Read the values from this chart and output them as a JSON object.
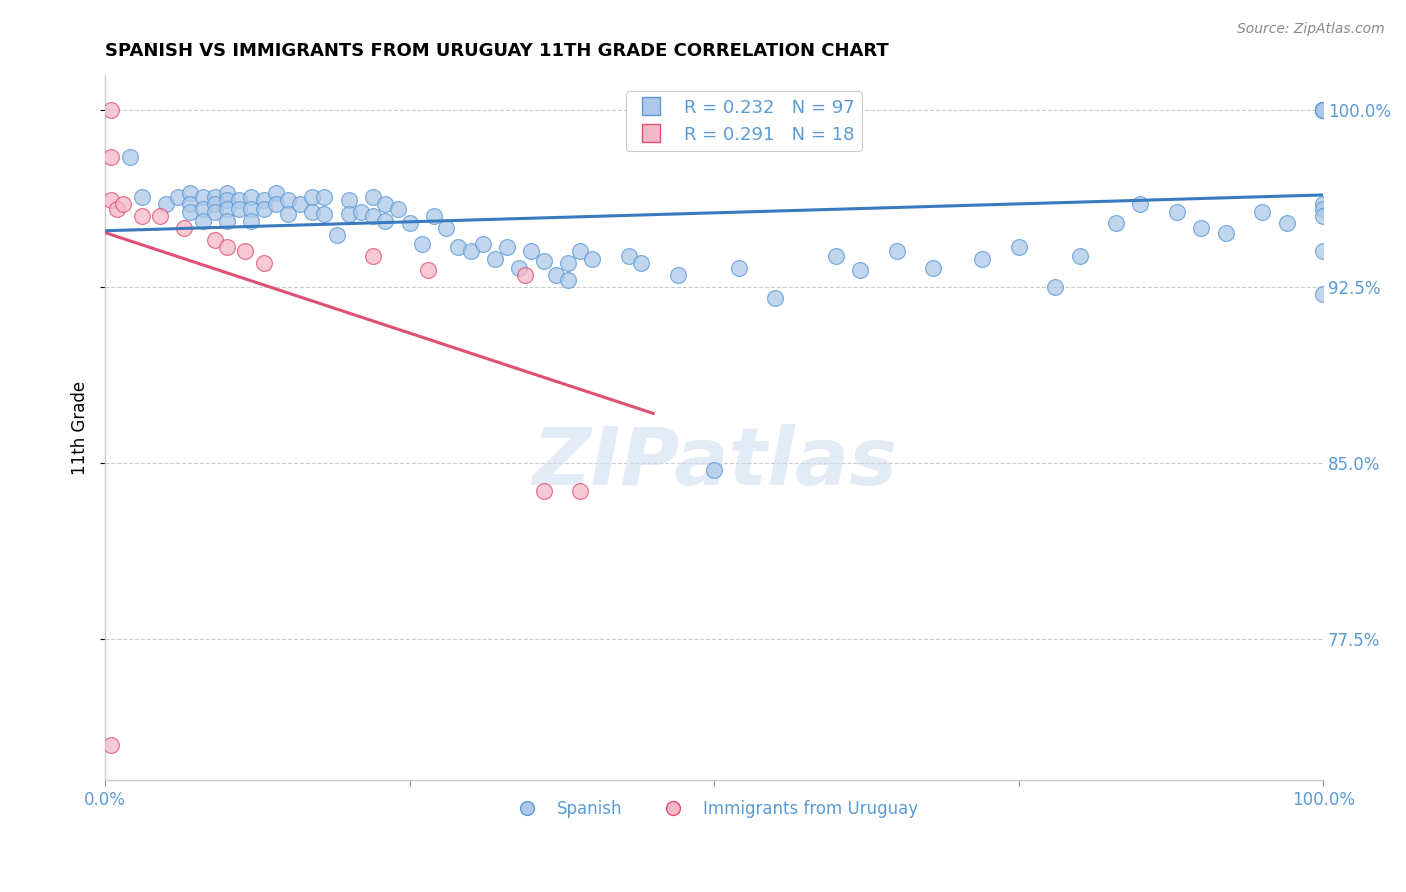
{
  "title": "SPANISH VS IMMIGRANTS FROM URUGUAY 11TH GRADE CORRELATION CHART",
  "source": "Source: ZipAtlas.com",
  "ylabel": "11th Grade",
  "legend_spanish": "Spanish",
  "legend_immigrants": "Immigrants from Uruguay",
  "R_spanish": 0.232,
  "N_spanish": 97,
  "R_immigrants": 0.291,
  "N_immigrants": 18,
  "xlim": [
    0.0,
    1.0
  ],
  "ylim": [
    0.715,
    1.015
  ],
  "yticks": [
    0.775,
    0.85,
    0.925,
    1.0
  ],
  "ytick_labels": [
    "77.5%",
    "85.0%",
    "92.5%",
    "100.0%"
  ],
  "xticks": [
    0.0,
    0.25,
    0.5,
    0.75,
    1.0
  ],
  "xtick_labels": [
    "0.0%",
    "",
    "",
    "",
    "100.0%"
  ],
  "color_spanish_fill": "#adc8e8",
  "color_spanish_edge": "#5b9bd5",
  "color_immigrants_fill": "#f4b8c8",
  "color_immigrants_edge": "#e05070",
  "color_trend_spanish": "#3a7bbf",
  "color_trend_immigrants": "#e05070",
  "color_axis_labels": "#5b9bd5",
  "watermark_text": "ZIPatlas",
  "spanish_x": [
    0.02,
    0.03,
    0.05,
    0.06,
    0.07,
    0.07,
    0.07,
    0.08,
    0.08,
    0.08,
    0.09,
    0.09,
    0.09,
    0.1,
    0.1,
    0.1,
    0.1,
    0.11,
    0.11,
    0.12,
    0.12,
    0.12,
    0.13,
    0.13,
    0.14,
    0.14,
    0.15,
    0.15,
    0.16,
    0.17,
    0.17,
    0.18,
    0.18,
    0.19,
    0.2,
    0.2,
    0.21,
    0.22,
    0.22,
    0.23,
    0.23,
    0.24,
    0.25,
    0.26,
    0.27,
    0.28,
    0.29,
    0.3,
    0.31,
    0.32,
    0.33,
    0.34,
    0.35,
    0.36,
    0.37,
    0.38,
    0.38,
    0.39,
    0.4,
    0.43,
    0.44,
    0.47,
    0.5,
    0.52,
    0.55,
    0.6,
    0.62,
    0.65,
    0.68,
    0.72,
    0.75,
    0.78,
    0.8,
    0.83,
    0.85,
    0.88,
    0.9,
    0.92,
    0.95,
    0.97,
    1.0,
    1.0,
    1.0,
    1.0,
    1.0,
    1.0,
    1.0,
    1.0,
    1.0,
    1.0,
    1.0,
    1.0,
    1.0,
    1.0,
    1.0,
    1.0,
    1.0
  ],
  "spanish_y": [
    0.98,
    0.963,
    0.96,
    0.963,
    0.965,
    0.96,
    0.957,
    0.963,
    0.958,
    0.953,
    0.963,
    0.96,
    0.957,
    0.965,
    0.962,
    0.958,
    0.953,
    0.962,
    0.958,
    0.963,
    0.958,
    0.953,
    0.962,
    0.958,
    0.965,
    0.96,
    0.962,
    0.956,
    0.96,
    0.963,
    0.957,
    0.963,
    0.956,
    0.947,
    0.962,
    0.956,
    0.957,
    0.963,
    0.955,
    0.96,
    0.953,
    0.958,
    0.952,
    0.943,
    0.955,
    0.95,
    0.942,
    0.94,
    0.943,
    0.937,
    0.942,
    0.933,
    0.94,
    0.936,
    0.93,
    0.935,
    0.928,
    0.94,
    0.937,
    0.938,
    0.935,
    0.93,
    0.847,
    0.933,
    0.92,
    0.938,
    0.932,
    0.94,
    0.933,
    0.937,
    0.942,
    0.925,
    0.938,
    0.952,
    0.96,
    0.957,
    0.95,
    0.948,
    0.957,
    0.952,
    1.0,
    1.0,
    1.0,
    1.0,
    1.0,
    1.0,
    1.0,
    1.0,
    1.0,
    1.0,
    1.0,
    1.0,
    0.96,
    0.958,
    0.955,
    0.94,
    0.922
  ],
  "immigrants_x": [
    0.005,
    0.005,
    0.005,
    0.01,
    0.015,
    0.03,
    0.045,
    0.065,
    0.09,
    0.1,
    0.115,
    0.13,
    0.22,
    0.265,
    0.345,
    0.36,
    0.39,
    0.005
  ],
  "immigrants_y": [
    1.0,
    0.98,
    0.962,
    0.958,
    0.96,
    0.955,
    0.955,
    0.95,
    0.945,
    0.942,
    0.94,
    0.935,
    0.938,
    0.932,
    0.93,
    0.838,
    0.838,
    0.73
  ]
}
